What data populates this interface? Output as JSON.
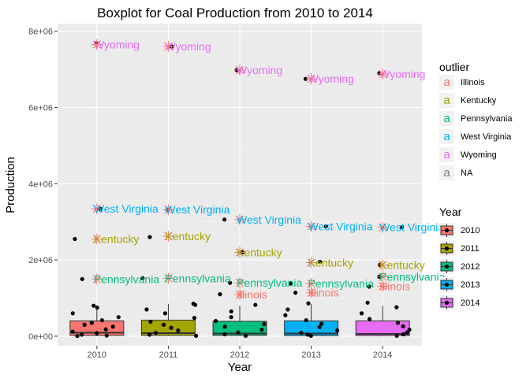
{
  "chart_data": {
    "type": "boxplot",
    "title": "Boxplot for Coal Production from 2010 to 2014",
    "xlabel": "Year",
    "ylabel": "Production",
    "categories": [
      "2010",
      "2011",
      "2012",
      "2013",
      "2014"
    ],
    "y_ticks": [
      {
        "value": 0,
        "label": "0e+00"
      },
      {
        "value": 2000000,
        "label": "2e+06"
      },
      {
        "value": 4000000,
        "label": "4e+06"
      },
      {
        "value": 6000000,
        "label": "6e+06"
      },
      {
        "value": 8000000,
        "label": "8e+06"
      }
    ],
    "ylim": [
      -250000,
      8200000
    ],
    "grid": true,
    "colors": {
      "2010": "#F8766D",
      "2011": "#A3A500",
      "2012": "#00BF7D",
      "2013": "#00B0F6",
      "2014": "#E76BF3",
      "Illinois": "#F8766D",
      "Kentucky": "#A3A500",
      "Pennsylvania": "#00BF7D",
      "West Virginia": "#00B0F6",
      "Wyoming": "#E76BF3",
      "NA": "#7F7F7F",
      "outlier_marker": "#F8766D"
    },
    "boxes": [
      {
        "year": "2010",
        "min": 0,
        "q1": 20000,
        "median": 90000,
        "q3": 400000,
        "max": 800000
      },
      {
        "year": "2011",
        "min": 0,
        "q1": 20000,
        "median": 80000,
        "q3": 420000,
        "max": 850000
      },
      {
        "year": "2012",
        "min": 0,
        "q1": 20000,
        "median": 70000,
        "q3": 390000,
        "max": 800000
      },
      {
        "year": "2013",
        "min": 0,
        "q1": 15000,
        "median": 70000,
        "q3": 400000,
        "max": 850000
      },
      {
        "year": "2014",
        "min": 0,
        "q1": 15000,
        "median": 60000,
        "q3": 400000,
        "max": 800000
      }
    ],
    "outliers": [
      {
        "year": "2010",
        "state": "Wyoming",
        "value": 7650000
      },
      {
        "year": "2010",
        "state": "West Virginia",
        "value": 3340000
      },
      {
        "year": "2010",
        "state": "Kentucky",
        "value": 2550000
      },
      {
        "year": "2010",
        "state": "Pennsylvania",
        "value": 1500000
      },
      {
        "year": "2011",
        "state": "Wyoming",
        "value": 7600000
      },
      {
        "year": "2011",
        "state": "West Virginia",
        "value": 3320000
      },
      {
        "year": "2011",
        "state": "Kentucky",
        "value": 2620000
      },
      {
        "year": "2011",
        "state": "Pennsylvania",
        "value": 1520000
      },
      {
        "year": "2012",
        "state": "Wyoming",
        "value": 6980000
      },
      {
        "year": "2012",
        "state": "West Virginia",
        "value": 3060000
      },
      {
        "year": "2012",
        "state": "Kentucky",
        "value": 2200000
      },
      {
        "year": "2012",
        "state": "Pennsylvania",
        "value": 1400000
      },
      {
        "year": "2012",
        "state": "Illinois",
        "value": 1090000
      },
      {
        "year": "2013",
        "state": "Wyoming",
        "value": 6750000
      },
      {
        "year": "2013",
        "state": "West Virginia",
        "value": 2880000
      },
      {
        "year": "2013",
        "state": "Kentucky",
        "value": 1930000
      },
      {
        "year": "2013",
        "state": "Pennsylvania",
        "value": 1380000
      },
      {
        "year": "2013",
        "state": "Illinois",
        "value": 1140000
      },
      {
        "year": "2014",
        "state": "Wyoming",
        "value": 6880000
      },
      {
        "year": "2014",
        "state": "West Virginia",
        "value": 2860000
      },
      {
        "year": "2014",
        "state": "Kentucky",
        "value": 1870000
      },
      {
        "year": "2014",
        "state": "Pennsylvania",
        "value": 1560000
      },
      {
        "year": "2014",
        "state": "Illinois",
        "value": 1310000
      }
    ],
    "jitter_points": [
      {
        "year": "2010",
        "value": 7680000
      },
      {
        "year": "2010",
        "value": 3340000
      },
      {
        "year": "2010",
        "value": 2550000
      },
      {
        "year": "2010",
        "value": 1500000
      },
      {
        "year": "2010",
        "value": 800000
      },
      {
        "year": "2010",
        "value": 750000
      },
      {
        "year": "2010",
        "value": 600000
      },
      {
        "year": "2010",
        "value": 500000
      },
      {
        "year": "2010",
        "value": 420000
      },
      {
        "year": "2010",
        "value": 350000
      },
      {
        "year": "2010",
        "value": 300000
      },
      {
        "year": "2010",
        "value": 250000
      },
      {
        "year": "2010",
        "value": 180000
      },
      {
        "year": "2010",
        "value": 120000
      },
      {
        "year": "2010",
        "value": 80000
      },
      {
        "year": "2010",
        "value": 40000
      },
      {
        "year": "2010",
        "value": 15000
      },
      {
        "year": "2010",
        "value": 5000
      },
      {
        "year": "2011",
        "value": 7600000
      },
      {
        "year": "2011",
        "value": 3320000
      },
      {
        "year": "2011",
        "value": 2600000
      },
      {
        "year": "2011",
        "value": 1520000
      },
      {
        "year": "2011",
        "value": 850000
      },
      {
        "year": "2011",
        "value": 820000
      },
      {
        "year": "2011",
        "value": 700000
      },
      {
        "year": "2011",
        "value": 600000
      },
      {
        "year": "2011",
        "value": 480000
      },
      {
        "year": "2011",
        "value": 380000
      },
      {
        "year": "2011",
        "value": 300000
      },
      {
        "year": "2011",
        "value": 220000
      },
      {
        "year": "2011",
        "value": 150000
      },
      {
        "year": "2011",
        "value": 90000
      },
      {
        "year": "2011",
        "value": 40000
      },
      {
        "year": "2011",
        "value": 10000
      },
      {
        "year": "2012",
        "value": 6980000
      },
      {
        "year": "2012",
        "value": 3060000
      },
      {
        "year": "2012",
        "value": 2200000
      },
      {
        "year": "2012",
        "value": 1400000
      },
      {
        "year": "2012",
        "value": 1100000
      },
      {
        "year": "2012",
        "value": 820000
      },
      {
        "year": "2012",
        "value": 650000
      },
      {
        "year": "2012",
        "value": 500000
      },
      {
        "year": "2012",
        "value": 400000
      },
      {
        "year": "2012",
        "value": 320000
      },
      {
        "year": "2012",
        "value": 250000
      },
      {
        "year": "2012",
        "value": 170000
      },
      {
        "year": "2012",
        "value": 100000
      },
      {
        "year": "2012",
        "value": 50000
      },
      {
        "year": "2012",
        "value": 10000
      },
      {
        "year": "2013",
        "value": 6750000
      },
      {
        "year": "2013",
        "value": 2880000
      },
      {
        "year": "2013",
        "value": 1950000
      },
      {
        "year": "2013",
        "value": 1380000
      },
      {
        "year": "2013",
        "value": 1140000
      },
      {
        "year": "2013",
        "value": 860000
      },
      {
        "year": "2013",
        "value": 700000
      },
      {
        "year": "2013",
        "value": 550000
      },
      {
        "year": "2013",
        "value": 420000
      },
      {
        "year": "2013",
        "value": 330000
      },
      {
        "year": "2013",
        "value": 240000
      },
      {
        "year": "2013",
        "value": 150000
      },
      {
        "year": "2013",
        "value": 90000
      },
      {
        "year": "2013",
        "value": 40000
      },
      {
        "year": "2013",
        "value": 10000
      },
      {
        "year": "2014",
        "value": 6900000
      },
      {
        "year": "2014",
        "value": 2860000
      },
      {
        "year": "2014",
        "value": 1870000
      },
      {
        "year": "2014",
        "value": 1560000
      },
      {
        "year": "2014",
        "value": 1300000
      },
      {
        "year": "2014",
        "value": 880000
      },
      {
        "year": "2014",
        "value": 760000
      },
      {
        "year": "2014",
        "value": 600000
      },
      {
        "year": "2014",
        "value": 450000
      },
      {
        "year": "2014",
        "value": 350000
      },
      {
        "year": "2014",
        "value": 260000
      },
      {
        "year": "2014",
        "value": 170000
      },
      {
        "year": "2014",
        "value": 100000
      },
      {
        "year": "2014",
        "value": 50000
      },
      {
        "year": "2014",
        "value": 10000
      }
    ],
    "legends": [
      {
        "title": "outlier",
        "key_type": "letter",
        "key_letter": "a",
        "entries": [
          "Illinois",
          "Kentucky",
          "Pennsylvania",
          "West Virginia",
          "Wyoming",
          "NA"
        ]
      },
      {
        "title": "Year",
        "key_type": "box",
        "entries": [
          "2010",
          "2011",
          "2012",
          "2013",
          "2014"
        ]
      }
    ],
    "legend_placement": "right"
  }
}
